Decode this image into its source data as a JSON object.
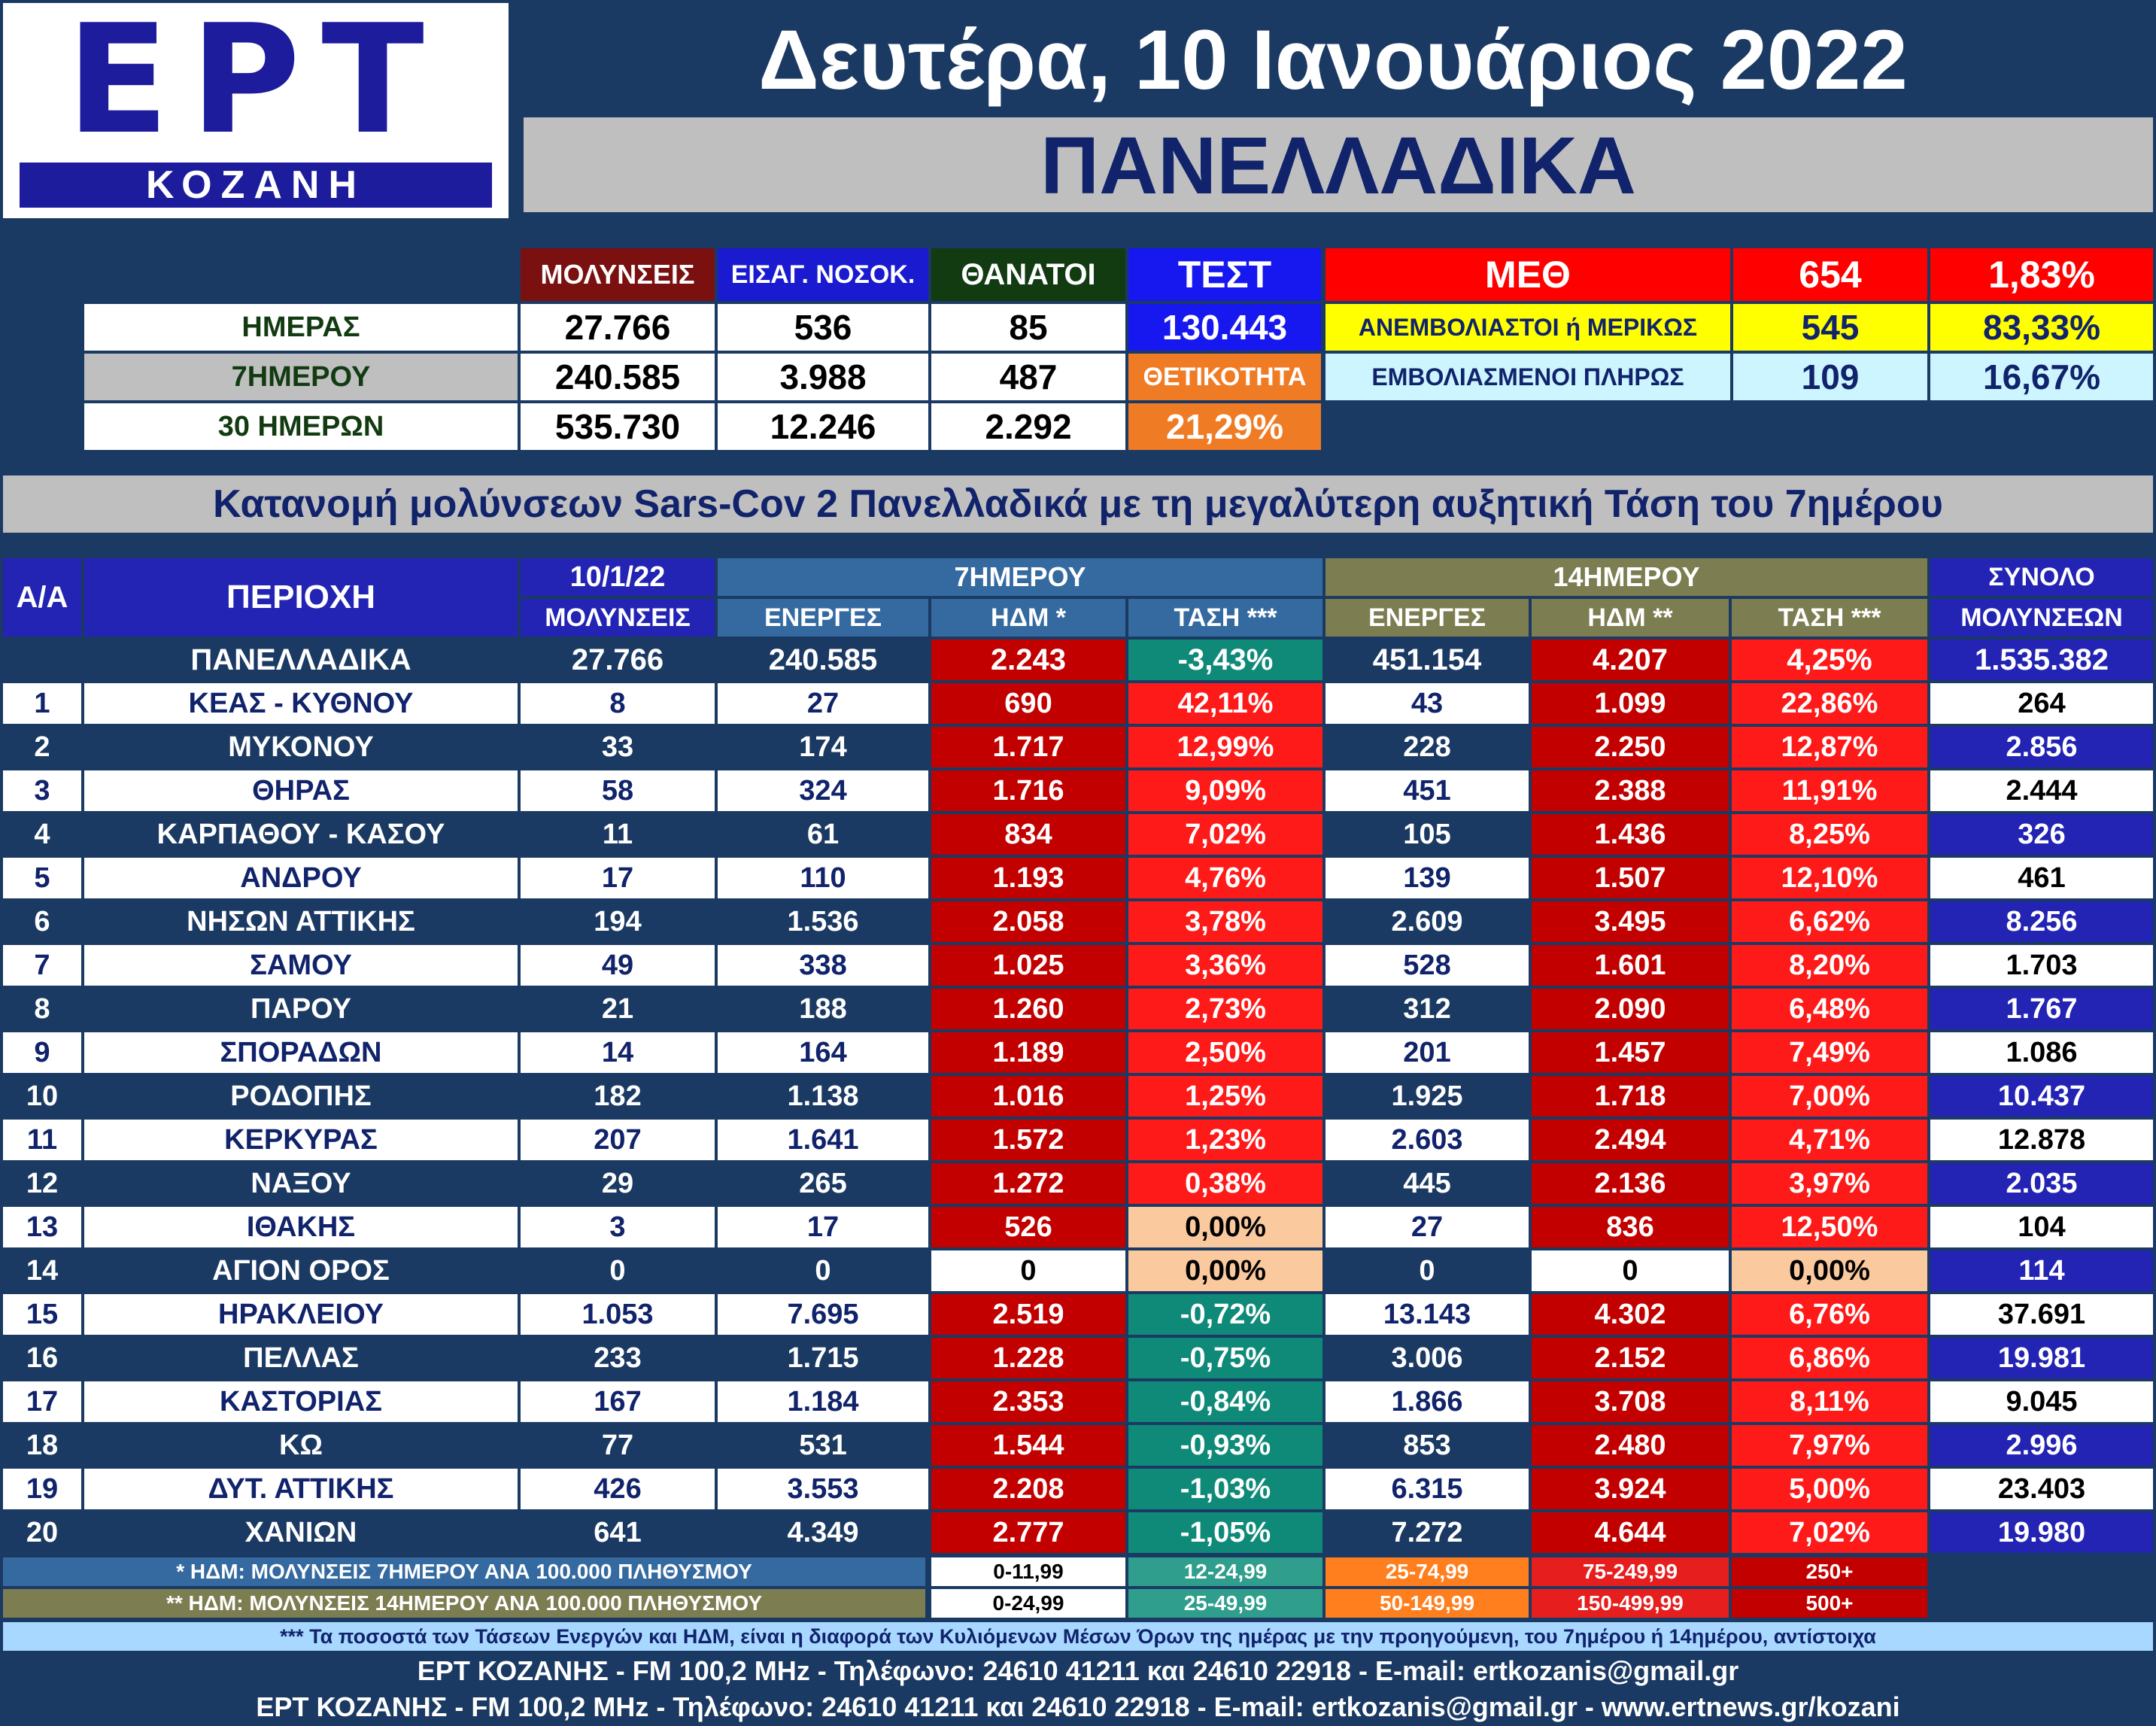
{
  "logo": {
    "brand": "ΕΡΤ",
    "city": "ΚΟΖΑΝΗ"
  },
  "header": {
    "date": "Δευτέρα, 10 Ιανουάριος 2022",
    "scope": "ΠΑΝΕΛΛΑΔΙΚΑ"
  },
  "summary": {
    "col_headers": [
      "ΜΟΛΥΝΣΕΙΣ",
      "ΕΙΣΑΓ. ΝΟΣΟΚ.",
      "ΘΑΝΑΤΟΙ",
      "ΤΕΣΤ"
    ],
    "rows": [
      {
        "label": "ΗΜΕΡΑΣ",
        "values": [
          "27.766",
          "536",
          "85"
        ],
        "test": "130.443"
      },
      {
        "label": "7ΗΜΕΡΟΥ",
        "values": [
          "240.585",
          "3.988",
          "487"
        ],
        "test": "ΘΕΤΙΚΟΤΗΤΑ"
      },
      {
        "label": "30 ΗΜΕΡΩΝ",
        "values": [
          "535.730",
          "12.246",
          "2.292"
        ],
        "test": "21,29%"
      }
    ]
  },
  "icu": {
    "header": {
      "label": "ΜΕΘ",
      "count": "654",
      "pct": "1,83%"
    },
    "rows": [
      {
        "label": "ΑΝΕΜΒΟΛΙΑΣΤΟΙ ή ΜΕΡΙΚΩΣ",
        "count": "545",
        "pct": "83,33%"
      },
      {
        "label": "ΕΜΒΟΛΙΑΣΜΕΝΟΙ ΠΛΗΡΩΣ",
        "count": "109",
        "pct": "16,67%"
      }
    ]
  },
  "section_title": "Κατανομή μολύνσεων Sars-Cov 2 Πανελλαδικά με τη μεγαλύτερη αυξητική Τάση του 7ημέρου",
  "table": {
    "headers": {
      "aa": "Α/Α",
      "region": "ΠΕΡΙΟΧΗ",
      "date": "10/1/22",
      "infections": "ΜΟΛΥΝΣΕΙΣ",
      "group7": "7ΗΜΕΡΟΥ",
      "group14": "14ΗΜΕΡΟΥ",
      "total_top": "ΣΥΝΟΛΟ",
      "total_bottom": "ΜΟΛΥΝΣΕΩΝ",
      "active": "ΕΝΕΡΓΕΣ",
      "hdm7": "ΗΔΜ *",
      "hdm14": "ΗΔΜ **",
      "trend": "ΤΑΣΗ ***"
    },
    "national": {
      "region": "ΠΑΝΕΛΛΑΔΙΚΑ",
      "inf": "27.766",
      "act7": "240.585",
      "hdm7": "2.243",
      "tr7": "-3,43%",
      "act14": "451.154",
      "hdm14": "4.207",
      "tr14": "4,25%",
      "total": "1.535.382"
    },
    "rows": [
      {
        "aa": "1",
        "region": "ΚΕΑΣ - ΚΥΘΝΟΥ",
        "inf": "8",
        "act7": "27",
        "hdm7": "690",
        "tr7": "42,11%",
        "act14": "43",
        "hdm14": "1.099",
        "tr14": "22,86%",
        "total": "264"
      },
      {
        "aa": "2",
        "region": "ΜΥΚΟΝΟΥ",
        "inf": "33",
        "act7": "174",
        "hdm7": "1.717",
        "tr7": "12,99%",
        "act14": "228",
        "hdm14": "2.250",
        "tr14": "12,87%",
        "total": "2.856"
      },
      {
        "aa": "3",
        "region": "ΘΗΡΑΣ",
        "inf": "58",
        "act7": "324",
        "hdm7": "1.716",
        "tr7": "9,09%",
        "act14": "451",
        "hdm14": "2.388",
        "tr14": "11,91%",
        "total": "2.444"
      },
      {
        "aa": "4",
        "region": "ΚΑΡΠΑΘΟΥ - ΚΑΣΟΥ",
        "inf": "11",
        "act7": "61",
        "hdm7": "834",
        "tr7": "7,02%",
        "act14": "105",
        "hdm14": "1.436",
        "tr14": "8,25%",
        "total": "326"
      },
      {
        "aa": "5",
        "region": "ΑΝΔΡΟΥ",
        "inf": "17",
        "act7": "110",
        "hdm7": "1.193",
        "tr7": "4,76%",
        "act14": "139",
        "hdm14": "1.507",
        "tr14": "12,10%",
        "total": "461"
      },
      {
        "aa": "6",
        "region": "ΝΗΣΩΝ ΑΤΤΙΚΗΣ",
        "inf": "194",
        "act7": "1.536",
        "hdm7": "2.058",
        "tr7": "3,78%",
        "act14": "2.609",
        "hdm14": "3.495",
        "tr14": "6,62%",
        "total": "8.256"
      },
      {
        "aa": "7",
        "region": "ΣΑΜΟΥ",
        "inf": "49",
        "act7": "338",
        "hdm7": "1.025",
        "tr7": "3,36%",
        "act14": "528",
        "hdm14": "1.601",
        "tr14": "8,20%",
        "total": "1.703"
      },
      {
        "aa": "8",
        "region": "ΠΑΡΟΥ",
        "inf": "21",
        "act7": "188",
        "hdm7": "1.260",
        "tr7": "2,73%",
        "act14": "312",
        "hdm14": "2.090",
        "tr14": "6,48%",
        "total": "1.767"
      },
      {
        "aa": "9",
        "region": "ΣΠΟΡΑΔΩΝ",
        "inf": "14",
        "act7": "164",
        "hdm7": "1.189",
        "tr7": "2,50%",
        "act14": "201",
        "hdm14": "1.457",
        "tr14": "7,49%",
        "total": "1.086"
      },
      {
        "aa": "10",
        "region": "ΡΟΔΟΠΗΣ",
        "inf": "182",
        "act7": "1.138",
        "hdm7": "1.016",
        "tr7": "1,25%",
        "act14": "1.925",
        "hdm14": "1.718",
        "tr14": "7,00%",
        "total": "10.437"
      },
      {
        "aa": "11",
        "region": "ΚΕΡΚΥΡΑΣ",
        "inf": "207",
        "act7": "1.641",
        "hdm7": "1.572",
        "tr7": "1,23%",
        "act14": "2.603",
        "hdm14": "2.494",
        "tr14": "4,71%",
        "total": "12.878"
      },
      {
        "aa": "12",
        "region": "ΝΑΞΟΥ",
        "inf": "29",
        "act7": "265",
        "hdm7": "1.272",
        "tr7": "0,38%",
        "act14": "445",
        "hdm14": "2.136",
        "tr14": "3,97%",
        "total": "2.035"
      },
      {
        "aa": "13",
        "region": "ΙΘΑΚΗΣ",
        "inf": "3",
        "act7": "17",
        "hdm7": "526",
        "tr7": "0,00%",
        "act14": "27",
        "hdm14": "836",
        "tr14": "12,50%",
        "total": "104"
      },
      {
        "aa": "14",
        "region": "ΑΓΙΟΝ ΟΡΟΣ",
        "inf": "0",
        "act7": "0",
        "hdm7": "0",
        "tr7": "0,00%",
        "act14": "0",
        "hdm14": "0",
        "tr14": "0,00%",
        "total": "114"
      },
      {
        "aa": "15",
        "region": "ΗΡΑΚΛΕΙΟΥ",
        "inf": "1.053",
        "act7": "7.695",
        "hdm7": "2.519",
        "tr7": "-0,72%",
        "act14": "13.143",
        "hdm14": "4.302",
        "tr14": "6,76%",
        "total": "37.691"
      },
      {
        "aa": "16",
        "region": "ΠΕΛΛΑΣ",
        "inf": "233",
        "act7": "1.715",
        "hdm7": "1.228",
        "tr7": "-0,75%",
        "act14": "3.006",
        "hdm14": "2.152",
        "tr14": "6,86%",
        "total": "19.981"
      },
      {
        "aa": "17",
        "region": "ΚΑΣΤΟΡΙΑΣ",
        "inf": "167",
        "act7": "1.184",
        "hdm7": "2.353",
        "tr7": "-0,84%",
        "act14": "1.866",
        "hdm14": "3.708",
        "tr14": "8,11%",
        "total": "9.045"
      },
      {
        "aa": "18",
        "region": "ΚΩ",
        "inf": "77",
        "act7": "531",
        "hdm7": "1.544",
        "tr7": "-0,93%",
        "act14": "853",
        "hdm14": "2.480",
        "tr14": "7,97%",
        "total": "2.996"
      },
      {
        "aa": "19",
        "region": "ΔΥΤ. ΑΤΤΙΚΗΣ",
        "inf": "426",
        "act7": "3.553",
        "hdm7": "2.208",
        "tr7": "-1,03%",
        "act14": "6.315",
        "hdm14": "3.924",
        "tr14": "5,00%",
        "total": "23.403"
      },
      {
        "aa": "20",
        "region": "ΧΑΝΙΩΝ",
        "inf": "641",
        "act7": "4.349",
        "hdm7": "2.777",
        "tr7": "-1,05%",
        "act14": "7.272",
        "hdm14": "4.644",
        "tr14": "7,02%",
        "total": "19.980"
      }
    ]
  },
  "legend": {
    "rows": [
      {
        "label": "* ΗΔΜ: ΜΟΛΥΝΣΕΙΣ 7ΗΜΕΡΟΥ ΑΝΑ 100.000 ΠΛΗΘΥΣΜΟΥ",
        "ranges": [
          "0-11,99",
          "12-24,99",
          "25-74,99",
          "75-249,99",
          "250+"
        ]
      },
      {
        "label": "** ΗΔΜ: ΜΟΛΥΝΣΕΙΣ 14ΗΜΕΡΟΥ ΑΝΑ 100.000 ΠΛΗΘΥΣΜΟΥ",
        "ranges": [
          "0-24,99",
          "25-49,99",
          "50-149,99",
          "150-499,99",
          "500+"
        ]
      }
    ],
    "colors": [
      "#ffffff",
      "#2f9e8c",
      "#ff7f1e",
      "#e61e1e",
      "#c20000"
    ]
  },
  "footer": {
    "note": "*** Τα ποσοστά των Τάσεων Ενεργών και ΗΔΜ, είναι η διαφορά των Κυλιόμενων Μέσων Όρων της ημέρας με την προηγούμενη, του 7ημέρου ή 14ημέρου, αντίστοιχα",
    "line1": "ΕΡΤ ΚΟΖΑΝΗΣ - FM 100,2 MHz - Τηλέφωνο:  24610 41211 και 24610 22918 - E-mail: ertkozanis@gmail.gr",
    "line2": "ΕΡΤ ΚΟΖΑΝΗΣ - FM 100,2 MHz - Τηλέφωνο:  24610 41211 και 24610 22918 - E-mail: ertkozanis@gmail.gr - www.ertnews.gr/kozani"
  },
  "colors": {
    "navy": "#1b3a63",
    "brand_blue": "#1c1c9c",
    "infections_header": "#7a1010",
    "hospital_header": "#1a1ad0",
    "deaths_header": "#123b12",
    "test_blue": "#1717ef",
    "positivity_orange": "#f07b25",
    "icu_red": "#ff0000",
    "unvaccinated_yellow": "#ffff00",
    "vaccinated_cyan": "#ccf5ff",
    "group7_blue": "#356aa0",
    "group14_olive": "#7d7d52",
    "hdm_dark_red": "#c20000",
    "trend_red": "#ff1a1a",
    "trend_teal": "#0f8a78",
    "trend_peach": "#fbc99e",
    "total_blue": "#2323b4",
    "title_gray": "#bfbfbf"
  }
}
